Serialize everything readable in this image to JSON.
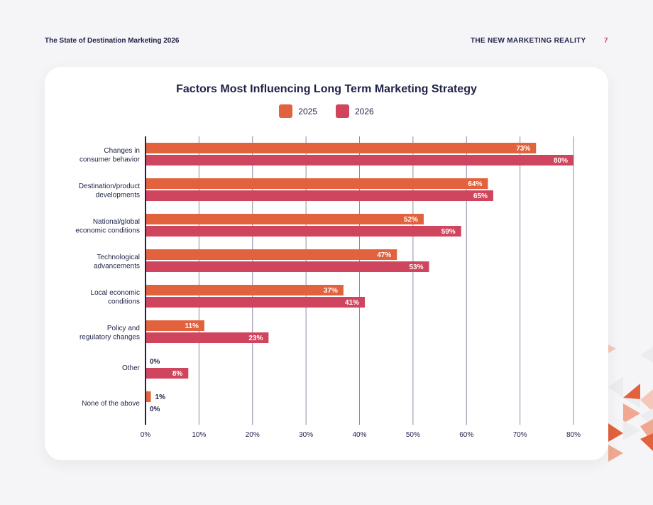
{
  "header": {
    "report_title": "The State of Destination Marketing 2026",
    "section_title": "THE NEW MARKETING REALITY",
    "page_number": "7"
  },
  "colors": {
    "series_2025": "#e2623d",
    "series_2026": "#d0455e",
    "axis": "#1f2147",
    "grid": "#8a8ca6"
  },
  "chart_data": {
    "type": "bar",
    "orientation": "horizontal",
    "title": "Factors Most Influencing Long Term Marketing Strategy",
    "legend_position": "top-center",
    "grid": true,
    "xlim": [
      0,
      80
    ],
    "ticks": [
      "0%",
      "10%",
      "20%",
      "30%",
      "40%",
      "50%",
      "60%",
      "70%",
      "80%"
    ],
    "categories": [
      [
        "Changes in",
        "consumer behavior"
      ],
      [
        "Destination/product",
        "developments"
      ],
      [
        "National/global",
        "economic conditions"
      ],
      [
        "Technological",
        "advancements"
      ],
      [
        "Local economic",
        "conditions"
      ],
      [
        "Policy and",
        "regulatory changes"
      ],
      [
        "Other"
      ],
      [
        "None of the above"
      ]
    ],
    "series": [
      {
        "name": "2025",
        "values": [
          73,
          64,
          52,
          47,
          37,
          11,
          0,
          1
        ]
      },
      {
        "name": "2026",
        "values": [
          80,
          65,
          59,
          53,
          41,
          23,
          8,
          0
        ]
      }
    ]
  }
}
